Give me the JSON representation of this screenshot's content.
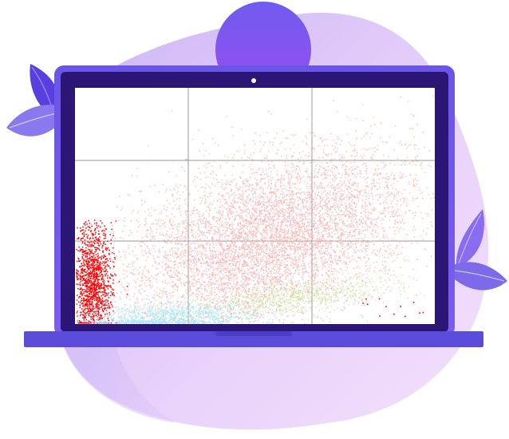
{
  "illustration": {
    "subject": "laptop-scatter-plot",
    "colors": {
      "blob_light": "#e9d4fb",
      "blob_mid": "#c9b8f6",
      "circle_top": "#8a5cf2",
      "circle_bottom": "#6a4ee8",
      "laptop_frame": "#6b4fe0",
      "laptop_bezel": "#2a1472",
      "laptop_base": "#5a49d8",
      "leaf_dark": "#6a4ee0",
      "leaf_light": "#8b7bf0",
      "grid": "#9a9a9a"
    }
  },
  "chart_data": {
    "type": "scatter",
    "title": "",
    "xlabel": "",
    "ylabel": "",
    "grid": true,
    "grid_divisions": {
      "columns": 3,
      "rows": 3
    },
    "series": [
      {
        "color": "#ffb3b3",
        "points": 9000
      },
      {
        "color": "#ff0000",
        "points": 1400
      },
      {
        "color": "#aee8fb",
        "points": 1200
      },
      {
        "color": "#c6e69a",
        "points": 700
      }
    ]
  }
}
